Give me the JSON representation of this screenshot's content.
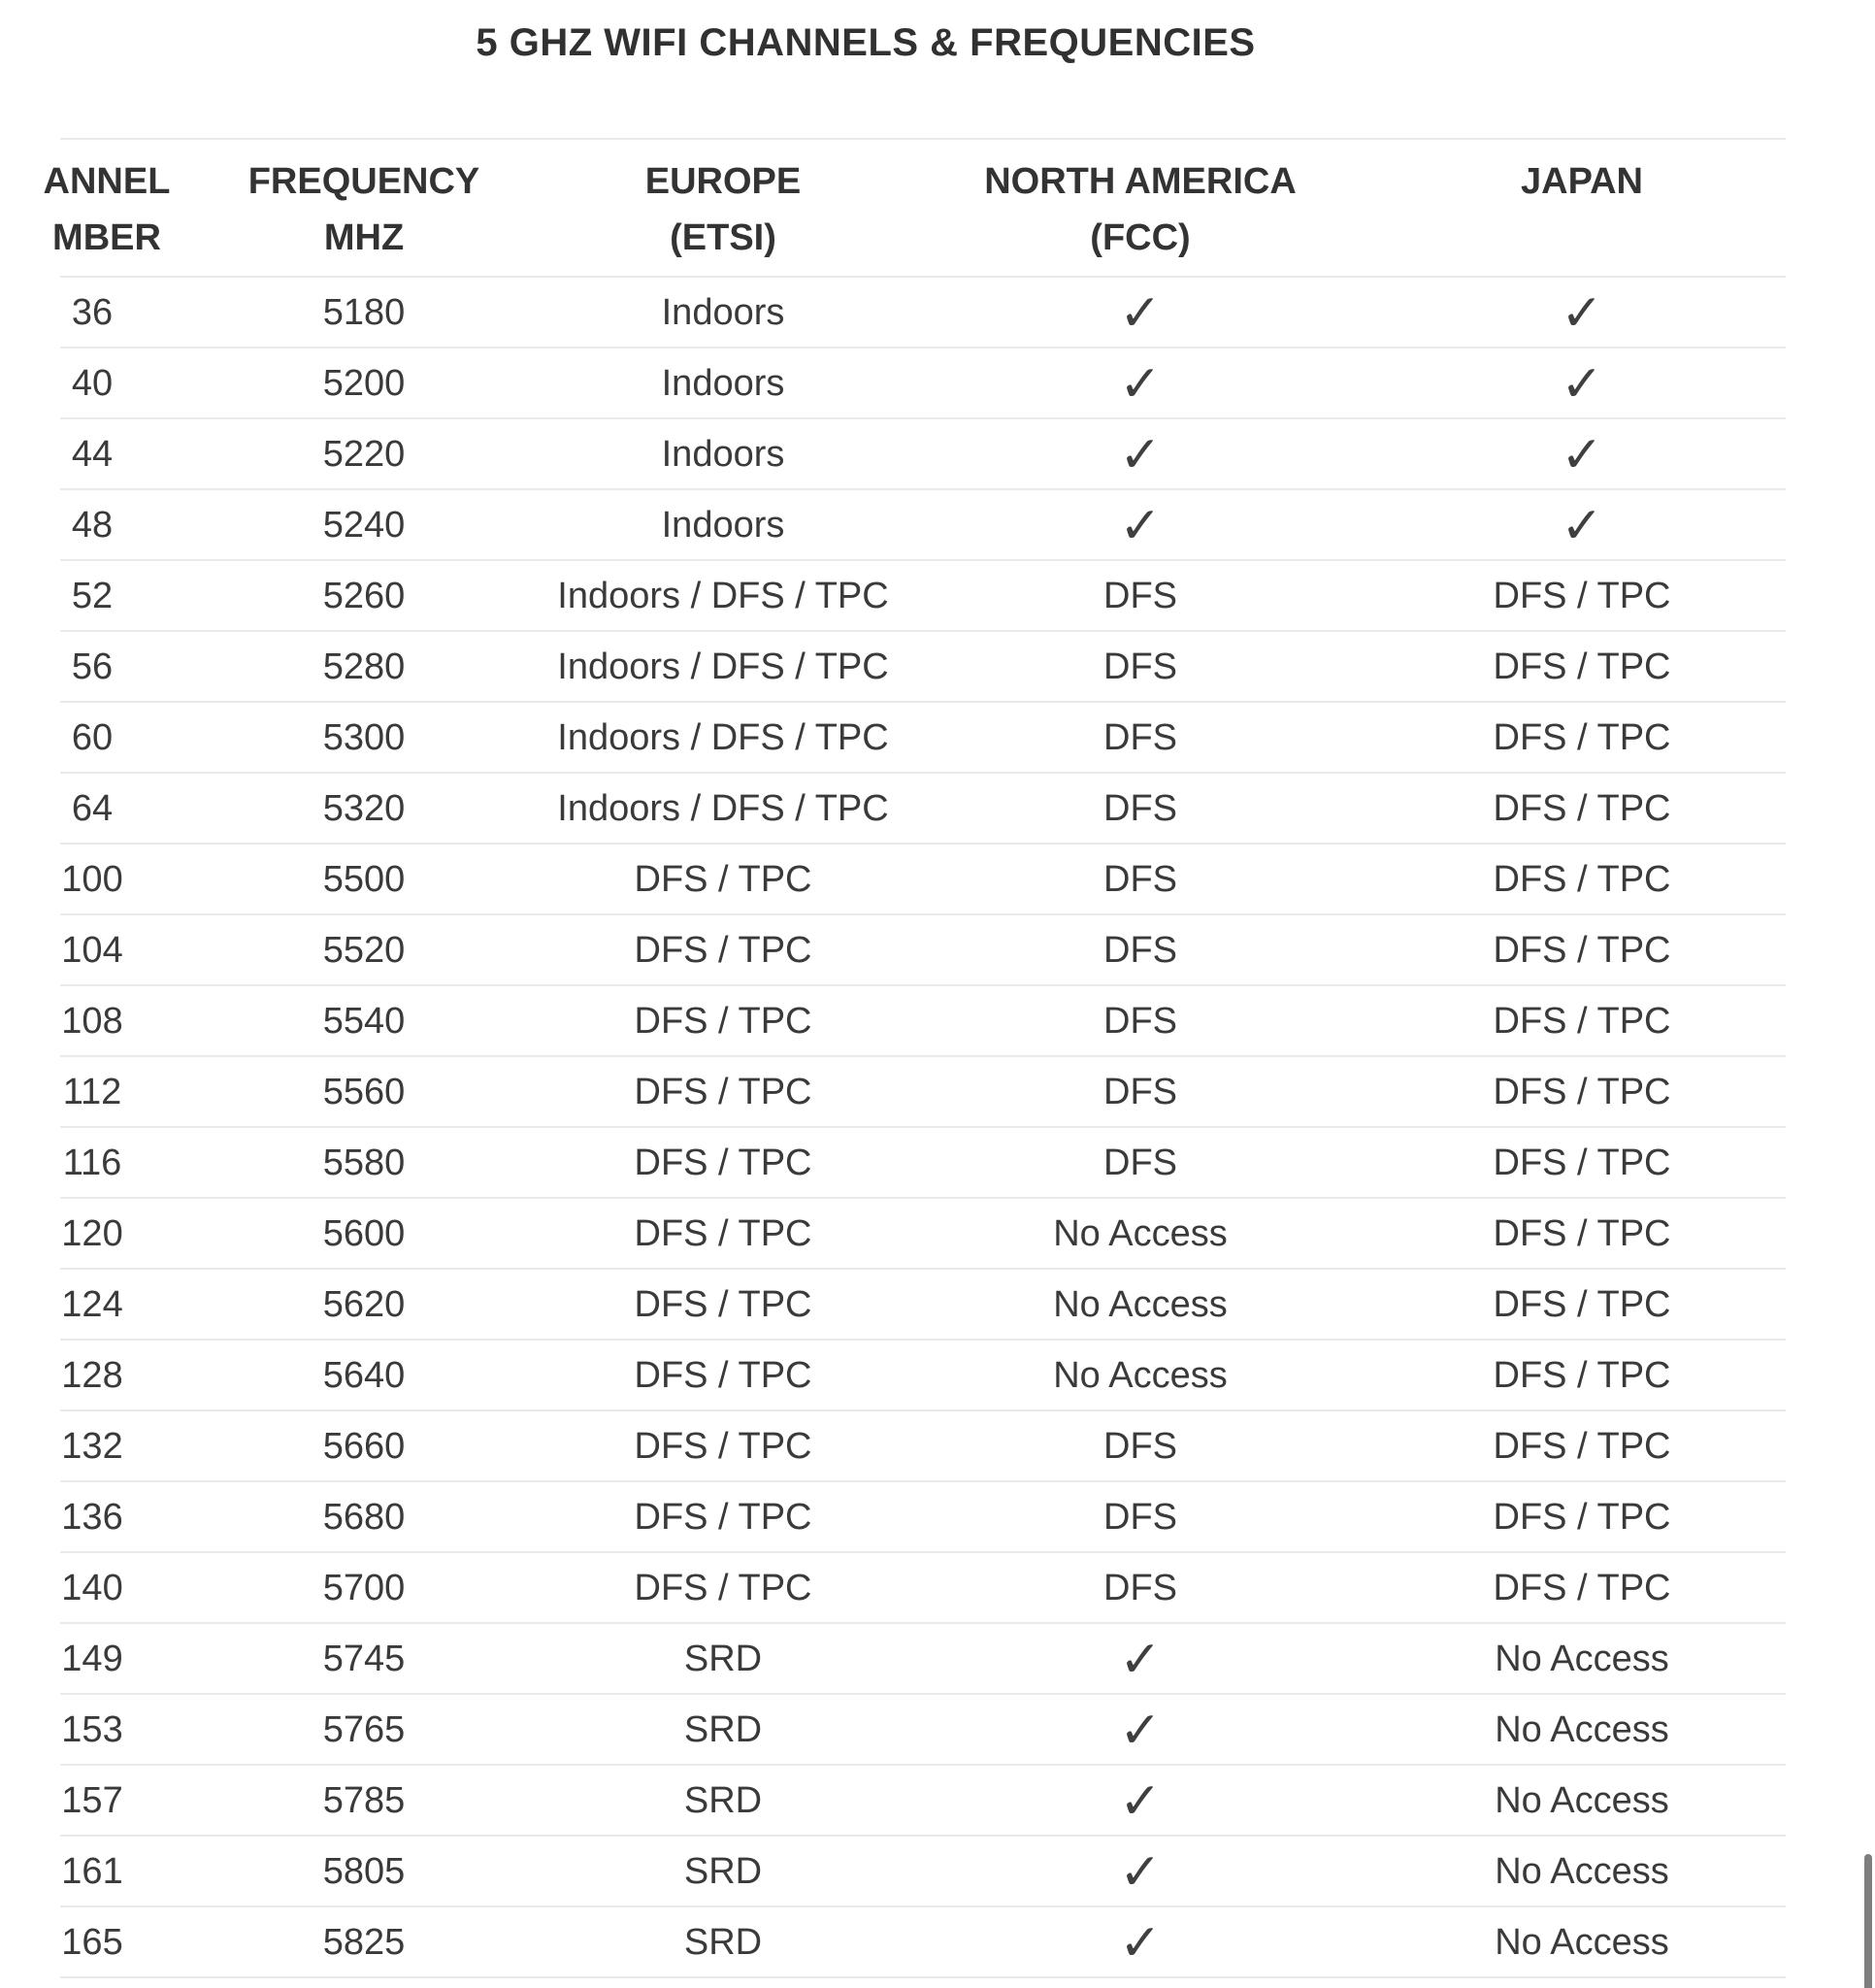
{
  "title": "5 GHZ WIFI CHANNELS & FREQUENCIES",
  "table": {
    "columns": [
      {
        "id": "channel",
        "header_lines": [
          "ANNEL",
          "MBER"
        ]
      },
      {
        "id": "frequency",
        "header_lines": [
          "FREQUENCY",
          "MHZ"
        ]
      },
      {
        "id": "europe",
        "header_lines": [
          "EUROPE",
          "(ETSI)"
        ]
      },
      {
        "id": "north_america",
        "header_lines": [
          "NORTH AMERICA",
          "(FCC)"
        ]
      },
      {
        "id": "japan",
        "header_lines": [
          "JAPAN",
          ""
        ]
      }
    ],
    "rows": [
      {
        "channel": "36",
        "frequency": "5180",
        "europe": "Indoors",
        "north_america": "✓",
        "japan": "✓"
      },
      {
        "channel": "40",
        "frequency": "5200",
        "europe": "Indoors",
        "north_america": "✓",
        "japan": "✓"
      },
      {
        "channel": "44",
        "frequency": "5220",
        "europe": "Indoors",
        "north_america": "✓",
        "japan": "✓"
      },
      {
        "channel": "48",
        "frequency": "5240",
        "europe": "Indoors",
        "north_america": "✓",
        "japan": "✓"
      },
      {
        "channel": "52",
        "frequency": "5260",
        "europe": "Indoors / DFS / TPC",
        "north_america": "DFS",
        "japan": "DFS / TPC"
      },
      {
        "channel": "56",
        "frequency": "5280",
        "europe": "Indoors / DFS / TPC",
        "north_america": "DFS",
        "japan": "DFS / TPC"
      },
      {
        "channel": "60",
        "frequency": "5300",
        "europe": "Indoors / DFS / TPC",
        "north_america": "DFS",
        "japan": "DFS / TPC"
      },
      {
        "channel": "64",
        "frequency": "5320",
        "europe": "Indoors / DFS / TPC",
        "north_america": "DFS",
        "japan": "DFS / TPC"
      },
      {
        "channel": "100",
        "frequency": "5500",
        "europe": "DFS / TPC",
        "north_america": "DFS",
        "japan": "DFS / TPC"
      },
      {
        "channel": "104",
        "frequency": "5520",
        "europe": "DFS / TPC",
        "north_america": "DFS",
        "japan": "DFS / TPC"
      },
      {
        "channel": "108",
        "frequency": "5540",
        "europe": "DFS / TPC",
        "north_america": "DFS",
        "japan": "DFS / TPC"
      },
      {
        "channel": "112",
        "frequency": "5560",
        "europe": "DFS / TPC",
        "north_america": "DFS",
        "japan": "DFS / TPC"
      },
      {
        "channel": "116",
        "frequency": "5580",
        "europe": "DFS / TPC",
        "north_america": "DFS",
        "japan": "DFS / TPC"
      },
      {
        "channel": "120",
        "frequency": "5600",
        "europe": "DFS / TPC",
        "north_america": "No Access",
        "japan": "DFS / TPC"
      },
      {
        "channel": "124",
        "frequency": "5620",
        "europe": "DFS / TPC",
        "north_america": "No Access",
        "japan": "DFS / TPC"
      },
      {
        "channel": "128",
        "frequency": "5640",
        "europe": "DFS / TPC",
        "north_america": "No Access",
        "japan": "DFS / TPC"
      },
      {
        "channel": "132",
        "frequency": "5660",
        "europe": "DFS / TPC",
        "north_america": "DFS",
        "japan": "DFS / TPC"
      },
      {
        "channel": "136",
        "frequency": "5680",
        "europe": "DFS / TPC",
        "north_america": "DFS",
        "japan": "DFS / TPC"
      },
      {
        "channel": "140",
        "frequency": "5700",
        "europe": "DFS / TPC",
        "north_america": "DFS",
        "japan": "DFS / TPC"
      },
      {
        "channel": "149",
        "frequency": "5745",
        "europe": "SRD",
        "north_america": "✓",
        "japan": "No Access"
      },
      {
        "channel": "153",
        "frequency": "5765",
        "europe": "SRD",
        "north_america": "✓",
        "japan": "No Access"
      },
      {
        "channel": "157",
        "frequency": "5785",
        "europe": "SRD",
        "north_america": "✓",
        "japan": "No Access"
      },
      {
        "channel": "161",
        "frequency": "5805",
        "europe": "SRD",
        "north_america": "✓",
        "japan": "No Access"
      },
      {
        "channel": "165",
        "frequency": "5825",
        "europe": "SRD",
        "north_america": "✓",
        "japan": "No Access"
      }
    ]
  },
  "ui": {
    "check_glyph": "✓",
    "check_color": "#3f3f3f",
    "text_color": "#3a3a3a",
    "header_color": "#333333",
    "divider_color": "#ece8e8",
    "scrollbar_color": "#7e7e7e"
  }
}
